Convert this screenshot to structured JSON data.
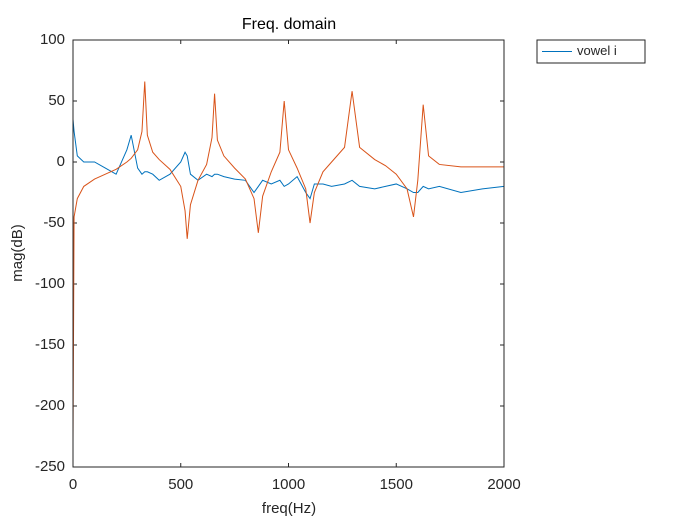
{
  "chart_data": {
    "type": "line",
    "title": "Freq. domain",
    "x_label": "freq(Hz)",
    "y_label": "mag(dB)",
    "x": [
      0,
      5,
      20,
      50,
      100,
      150,
      200,
      250,
      270,
      300,
      320,
      333,
      345,
      370,
      400,
      450,
      500,
      520,
      530,
      545,
      580,
      620,
      645,
      657,
      670,
      700,
      750,
      800,
      840,
      860,
      880,
      920,
      960,
      980,
      1000,
      1040,
      1080,
      1100,
      1120,
      1160,
      1200,
      1260,
      1295,
      1330,
      1400,
      1450,
      1500,
      1550,
      1580,
      1600,
      1625,
      1650,
      1700,
      1800,
      1900,
      2000
    ],
    "series": [
      {
        "name": "vowel i",
        "color": "#0072bd",
        "values": [
          35,
          25,
          5,
          0,
          0,
          -5,
          -10,
          10,
          22,
          -5,
          -10,
          -8,
          -8,
          -10,
          -15,
          -10,
          0,
          8,
          5,
          -10,
          -15,
          -10,
          -12,
          -10,
          -10,
          -12,
          -14,
          -15,
          -25,
          -20,
          -15,
          -18,
          -15,
          -20,
          -18,
          -12,
          -25,
          -30,
          -18,
          -18,
          -20,
          -18,
          -15,
          -20,
          -22,
          -20,
          -18,
          -22,
          -25,
          -25,
          -20,
          -22,
          -20,
          -25,
          -22,
          -20
        ]
      },
      {
        "color": "#d95319",
        "values": [
          -230,
          -45,
          -30,
          -20,
          -14,
          -10,
          -6,
          0,
          3,
          10,
          25,
          66,
          22,
          8,
          2,
          -6,
          -20,
          -40,
          -63,
          -35,
          -15,
          -2,
          20,
          56,
          18,
          5,
          -5,
          -14,
          -30,
          -58,
          -28,
          -8,
          8,
          50,
          10,
          -5,
          -22,
          -50,
          -25,
          -8,
          0,
          12,
          58,
          12,
          2,
          -3,
          -10,
          -22,
          -45,
          -15,
          47,
          5,
          -2,
          -4,
          -4,
          -4
        ]
      }
    ],
    "xlim": [
      0,
      2000
    ],
    "xticks": [
      0,
      500,
      1000,
      1500,
      2000
    ],
    "ylim": [
      -250,
      100
    ],
    "yticks": [
      -250,
      -200,
      -150,
      -100,
      -50,
      0,
      50,
      100
    ],
    "legend": "outside-top-right"
  }
}
